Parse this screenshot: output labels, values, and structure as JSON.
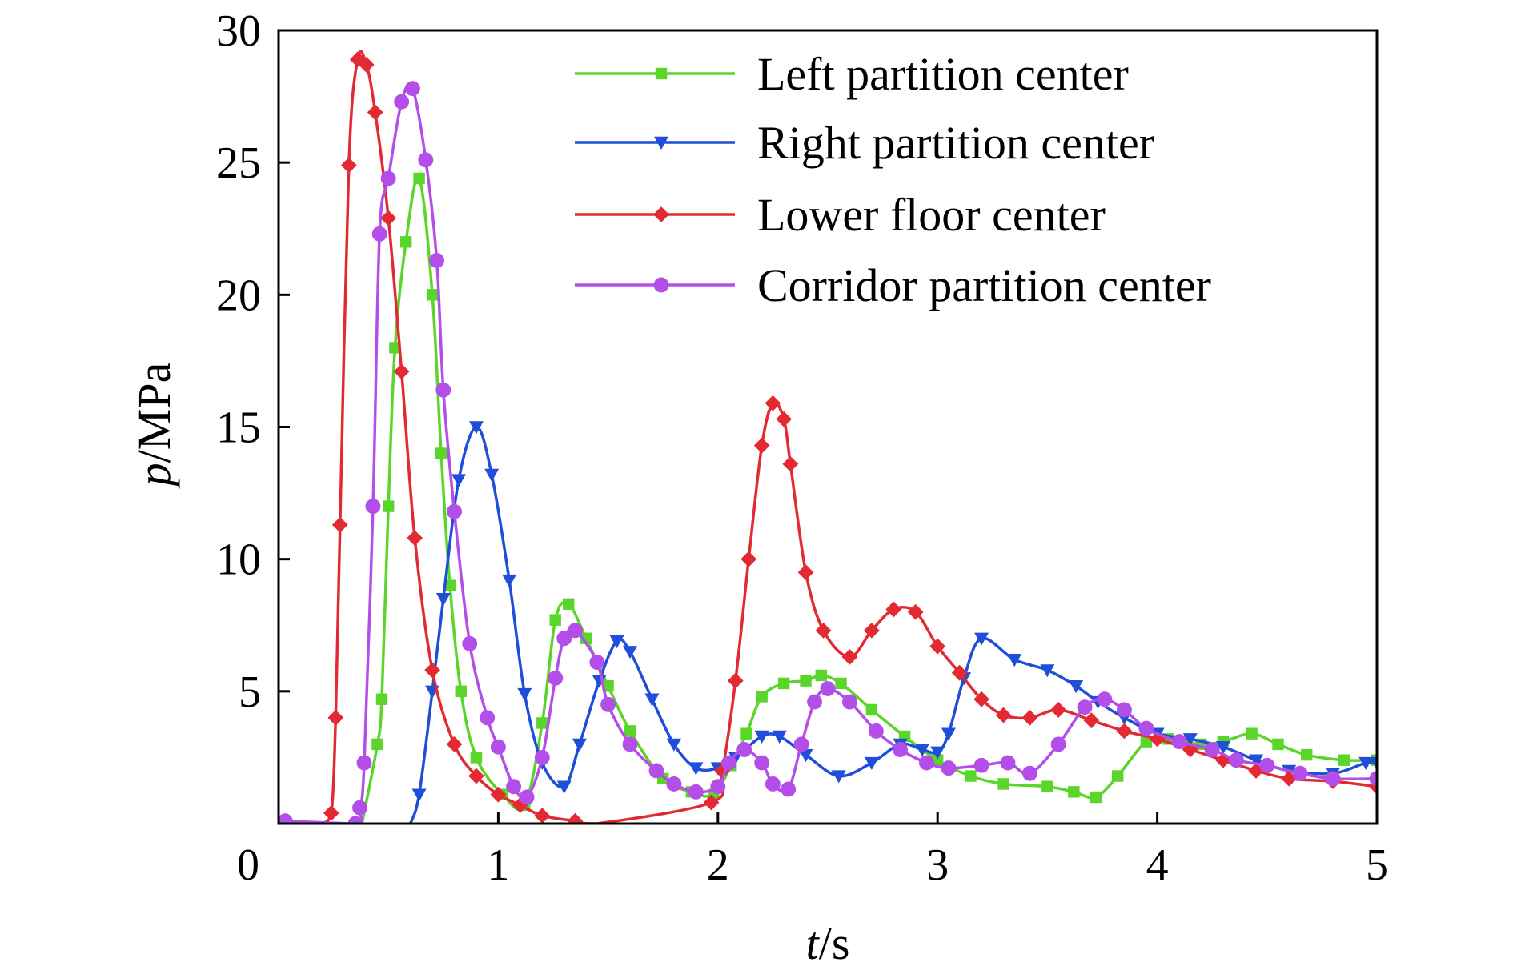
{
  "chart_data": {
    "type": "line",
    "xlabel_var": "t",
    "xlabel_unit": "/s",
    "ylabel_var": "p",
    "ylabel_unit": "/MPa",
    "xlim": [
      0,
      5
    ],
    "ylim": [
      0,
      30
    ],
    "xticks": [
      "0",
      "1",
      "2",
      "3",
      "4",
      "5"
    ],
    "yticks": [
      "5",
      "10",
      "15",
      "20",
      "25",
      "30"
    ],
    "grid": false,
    "legend_position": "top-right",
    "series": [
      {
        "name": "Left partition center",
        "color": "#5ad52a",
        "marker": "square",
        "points": [
          [
            0.38,
            0
          ],
          [
            0.45,
            3
          ],
          [
            0.47,
            4.7
          ],
          [
            0.5,
            12
          ],
          [
            0.53,
            18
          ],
          [
            0.58,
            22
          ],
          [
            0.64,
            24.4
          ],
          [
            0.7,
            20
          ],
          [
            0.74,
            14
          ],
          [
            0.78,
            9
          ],
          [
            0.83,
            5
          ],
          [
            0.9,
            2.5
          ],
          [
            1.02,
            1.1
          ],
          [
            1.12,
            0.7
          ],
          [
            1.2,
            3.8
          ],
          [
            1.26,
            7.7
          ],
          [
            1.32,
            8.3
          ],
          [
            1.4,
            7
          ],
          [
            1.5,
            5.2
          ],
          [
            1.6,
            3.5
          ],
          [
            1.75,
            1.7
          ],
          [
            1.88,
            1.2
          ],
          [
            1.98,
            1.1
          ],
          [
            2.06,
            2.2
          ],
          [
            2.13,
            3.4
          ],
          [
            2.2,
            4.8
          ],
          [
            2.3,
            5.3
          ],
          [
            2.4,
            5.4
          ],
          [
            2.47,
            5.6
          ],
          [
            2.56,
            5.3
          ],
          [
            2.7,
            4.3
          ],
          [
            2.85,
            3.3
          ],
          [
            3,
            2.4
          ],
          [
            3.15,
            1.8
          ],
          [
            3.3,
            1.5
          ],
          [
            3.5,
            1.4
          ],
          [
            3.62,
            1.2
          ],
          [
            3.72,
            1
          ],
          [
            3.82,
            1.8
          ],
          [
            3.95,
            3.1
          ],
          [
            4.05,
            3.2
          ],
          [
            4.2,
            3
          ],
          [
            4.3,
            3.1
          ],
          [
            4.43,
            3.4
          ],
          [
            4.55,
            3
          ],
          [
            4.68,
            2.6
          ],
          [
            4.85,
            2.4
          ],
          [
            5,
            2.4
          ]
        ]
      },
      {
        "name": "Right partition center",
        "color": "#1f4fd8",
        "marker": "triangle-down",
        "points": [
          [
            0.6,
            0
          ],
          [
            0.64,
            1.1
          ],
          [
            0.7,
            5
          ],
          [
            0.75,
            8.5
          ],
          [
            0.82,
            13
          ],
          [
            0.9,
            15
          ],
          [
            0.97,
            13.2
          ],
          [
            1.05,
            9.2
          ],
          [
            1.12,
            4.9
          ],
          [
            1.2,
            2.3
          ],
          [
            1.3,
            1.4
          ],
          [
            1.37,
            3
          ],
          [
            1.46,
            5.4
          ],
          [
            1.54,
            6.9
          ],
          [
            1.6,
            6.5
          ],
          [
            1.7,
            4.7
          ],
          [
            1.8,
            3
          ],
          [
            1.9,
            2.1
          ],
          [
            2,
            2.1
          ],
          [
            2.08,
            2.5
          ],
          [
            2.2,
            3.3
          ],
          [
            2.28,
            3.3
          ],
          [
            2.4,
            2.6
          ],
          [
            2.55,
            1.8
          ],
          [
            2.7,
            2.3
          ],
          [
            2.83,
            3
          ],
          [
            2.93,
            2.8
          ],
          [
            3,
            2.7
          ],
          [
            3.05,
            3.4
          ],
          [
            3.12,
            5.5
          ],
          [
            3.2,
            7
          ],
          [
            3.35,
            6.2
          ],
          [
            3.5,
            5.8
          ],
          [
            3.63,
            5.2
          ],
          [
            3.73,
            4.6
          ],
          [
            3.85,
            4
          ],
          [
            4,
            3.4
          ],
          [
            4.15,
            3.2
          ],
          [
            4.3,
            2.9
          ],
          [
            4.45,
            2.4
          ],
          [
            4.6,
            2
          ],
          [
            4.8,
            1.9
          ],
          [
            4.95,
            2.3
          ],
          [
            5,
            2.3
          ]
        ]
      },
      {
        "name": "Lower floor center",
        "color": "#e32a33",
        "marker": "diamond",
        "points": [
          [
            0.2,
            0
          ],
          [
            0.24,
            0.4
          ],
          [
            0.26,
            4
          ],
          [
            0.28,
            11.3
          ],
          [
            0.32,
            24.9
          ],
          [
            0.36,
            28.9
          ],
          [
            0.4,
            28.7
          ],
          [
            0.44,
            26.9
          ],
          [
            0.5,
            22.9
          ],
          [
            0.56,
            17.1
          ],
          [
            0.62,
            10.8
          ],
          [
            0.7,
            5.8
          ],
          [
            0.8,
            3
          ],
          [
            0.9,
            1.8
          ],
          [
            1,
            1.1
          ],
          [
            1.1,
            0.7
          ],
          [
            1.2,
            0.3
          ],
          [
            1.35,
            0.1
          ],
          [
            1.45,
            0
          ],
          [
            1.97,
            0.8
          ],
          [
            2.02,
            2
          ],
          [
            2.08,
            5.4
          ],
          [
            2.14,
            10
          ],
          [
            2.2,
            14.3
          ],
          [
            2.25,
            15.9
          ],
          [
            2.3,
            15.3
          ],
          [
            2.33,
            13.6
          ],
          [
            2.4,
            9.5
          ],
          [
            2.48,
            7.3
          ],
          [
            2.6,
            6.3
          ],
          [
            2.7,
            7.3
          ],
          [
            2.8,
            8.1
          ],
          [
            2.9,
            8
          ],
          [
            3,
            6.7
          ],
          [
            3.1,
            5.7
          ],
          [
            3.2,
            4.7
          ],
          [
            3.3,
            4.1
          ],
          [
            3.42,
            4
          ],
          [
            3.55,
            4.3
          ],
          [
            3.7,
            3.9
          ],
          [
            3.85,
            3.5
          ],
          [
            4,
            3.2
          ],
          [
            4.15,
            2.8
          ],
          [
            4.3,
            2.4
          ],
          [
            4.45,
            2
          ],
          [
            4.6,
            1.7
          ],
          [
            4.8,
            1.6
          ],
          [
            5,
            1.4
          ]
        ]
      },
      {
        "name": "Corridor partition center",
        "color": "#b44ee8",
        "marker": "circle",
        "points": [
          [
            0.03,
            0.1
          ],
          [
            0.35,
            0
          ],
          [
            0.37,
            0.6
          ],
          [
            0.39,
            2.3
          ],
          [
            0.43,
            12
          ],
          [
            0.46,
            22.3
          ],
          [
            0.5,
            24.4
          ],
          [
            0.56,
            27.3
          ],
          [
            0.61,
            27.8
          ],
          [
            0.67,
            25.1
          ],
          [
            0.72,
            21.3
          ],
          [
            0.75,
            16.4
          ],
          [
            0.8,
            11.8
          ],
          [
            0.87,
            6.8
          ],
          [
            0.95,
            4
          ],
          [
            1,
            2.9
          ],
          [
            1.07,
            1.4
          ],
          [
            1.13,
            1
          ],
          [
            1.2,
            2.5
          ],
          [
            1.26,
            5.5
          ],
          [
            1.3,
            7
          ],
          [
            1.35,
            7.3
          ],
          [
            1.45,
            6.1
          ],
          [
            1.5,
            4.5
          ],
          [
            1.6,
            3
          ],
          [
            1.72,
            2
          ],
          [
            1.8,
            1.5
          ],
          [
            1.9,
            1.2
          ],
          [
            2,
            1.4
          ],
          [
            2.05,
            2.3
          ],
          [
            2.12,
            2.8
          ],
          [
            2.2,
            2.3
          ],
          [
            2.25,
            1.5
          ],
          [
            2.32,
            1.3
          ],
          [
            2.38,
            3
          ],
          [
            2.44,
            4.6
          ],
          [
            2.5,
            5.1
          ],
          [
            2.6,
            4.6
          ],
          [
            2.72,
            3.5
          ],
          [
            2.83,
            2.8
          ],
          [
            2.95,
            2.3
          ],
          [
            3.05,
            2.1
          ],
          [
            3.2,
            2.2
          ],
          [
            3.32,
            2.3
          ],
          [
            3.42,
            1.9
          ],
          [
            3.55,
            3
          ],
          [
            3.67,
            4.4
          ],
          [
            3.76,
            4.7
          ],
          [
            3.85,
            4.3
          ],
          [
            3.95,
            3.6
          ],
          [
            4.1,
            3.1
          ],
          [
            4.25,
            2.8
          ],
          [
            4.36,
            2.4
          ],
          [
            4.5,
            2.2
          ],
          [
            4.65,
            1.9
          ],
          [
            4.8,
            1.7
          ],
          [
            5,
            1.7
          ]
        ]
      }
    ]
  }
}
